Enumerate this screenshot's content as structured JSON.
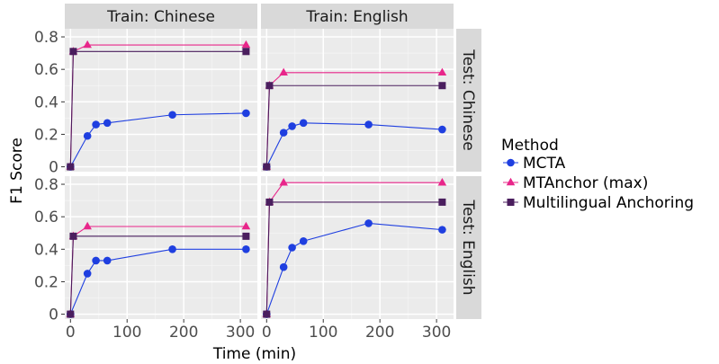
{
  "chart_data": {
    "type": "line",
    "xlabel": "Time (min)",
    "ylabel": "F1 Score",
    "xlim": [
      -10,
      330
    ],
    "ylim": [
      -0.03,
      0.85
    ],
    "x_ticks": [
      0,
      100,
      200,
      300
    ],
    "x_tick_labels": [
      "0",
      "100",
      "200",
      "300"
    ],
    "y_ticks": [
      0,
      0.2,
      0.4,
      0.6,
      0.8
    ],
    "y_tick_labels": [
      "0",
      "0.2",
      "0.4",
      "0.6",
      "0.8"
    ],
    "grid": true,
    "legend": {
      "title": "Method",
      "position": "right"
    },
    "columns": [
      "Train: Chinese",
      "Train: English"
    ],
    "rows": [
      "Test: Chinese",
      "Test: English"
    ],
    "series_styles": [
      {
        "name": "MCTA",
        "color": "#1f3fe0",
        "marker": "circle"
      },
      {
        "name": "MTAnchor (max)",
        "color": "#e8268a",
        "marker": "triangle"
      },
      {
        "name": "Multilingual Anchoring",
        "color": "#4a1e5e",
        "marker": "square"
      }
    ],
    "panels": [
      {
        "column": "Train: Chinese",
        "row": "Test: Chinese",
        "series": [
          {
            "name": "MCTA",
            "x": [
              0,
              30,
              45,
              65,
              180,
              310
            ],
            "y": [
              0,
              0.19,
              0.26,
              0.27,
              0.32,
              0.33
            ]
          },
          {
            "name": "MTAnchor (max)",
            "x": [
              0,
              5,
              30,
              310
            ],
            "y": [
              0,
              0.71,
              0.75,
              0.75
            ]
          },
          {
            "name": "Multilingual Anchoring",
            "x": [
              0,
              5,
              310
            ],
            "y": [
              0,
              0.71,
              0.71
            ]
          }
        ]
      },
      {
        "column": "Train: English",
        "row": "Test: Chinese",
        "series": [
          {
            "name": "MCTA",
            "x": [
              0,
              30,
              45,
              65,
              180,
              310
            ],
            "y": [
              0,
              0.21,
              0.25,
              0.27,
              0.26,
              0.23
            ]
          },
          {
            "name": "MTAnchor (max)",
            "x": [
              0,
              5,
              30,
              310
            ],
            "y": [
              0,
              0.5,
              0.58,
              0.58
            ]
          },
          {
            "name": "Multilingual Anchoring",
            "x": [
              0,
              5,
              310
            ],
            "y": [
              0,
              0.5,
              0.5
            ]
          }
        ]
      },
      {
        "column": "Train: Chinese",
        "row": "Test: English",
        "series": [
          {
            "name": "MCTA",
            "x": [
              0,
              30,
              45,
              65,
              180,
              310
            ],
            "y": [
              0,
              0.25,
              0.33,
              0.33,
              0.4,
              0.4
            ]
          },
          {
            "name": "MTAnchor (max)",
            "x": [
              0,
              5,
              30,
              310
            ],
            "y": [
              0,
              0.48,
              0.54,
              0.54
            ]
          },
          {
            "name": "Multilingual Anchoring",
            "x": [
              0,
              5,
              310
            ],
            "y": [
              0,
              0.48,
              0.48
            ]
          }
        ]
      },
      {
        "column": "Train: English",
        "row": "Test: English",
        "series": [
          {
            "name": "MCTA",
            "x": [
              0,
              30,
              45,
              65,
              180,
              310
            ],
            "y": [
              0,
              0.29,
              0.41,
              0.45,
              0.56,
              0.52
            ]
          },
          {
            "name": "MTAnchor (max)",
            "x": [
              0,
              5,
              30,
              310
            ],
            "y": [
              0,
              0.69,
              0.81,
              0.81
            ]
          },
          {
            "name": "Multilingual Anchoring",
            "x": [
              0,
              5,
              310
            ],
            "y": [
              0,
              0.69,
              0.69
            ]
          }
        ]
      }
    ]
  }
}
